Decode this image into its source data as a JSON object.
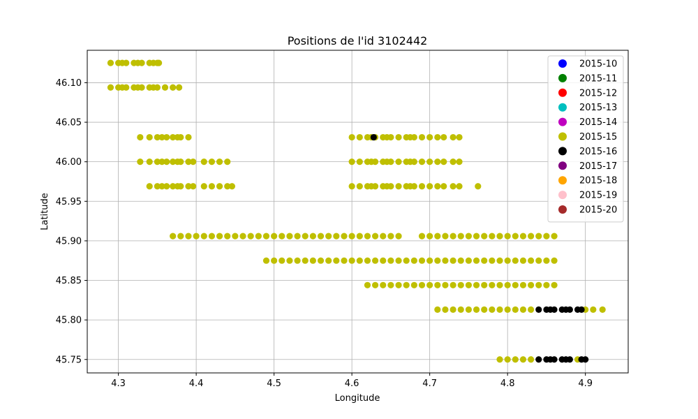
{
  "chart_data": {
    "type": "scatter",
    "title": "Positions de l'id 3102442",
    "xlabel": "Longitude",
    "ylabel": "Latitude",
    "xlim": [
      4.26,
      4.955
    ],
    "ylim": [
      45.733,
      46.141
    ],
    "xticks": [
      4.3,
      4.4,
      4.5,
      4.6,
      4.7,
      4.8,
      4.9
    ],
    "xtick_labels": [
      "4.3",
      "4.4",
      "4.5",
      "4.6",
      "4.7",
      "4.8",
      "4.9"
    ],
    "yticks": [
      45.75,
      45.8,
      45.85,
      45.9,
      45.95,
      46.0,
      46.05,
      46.1
    ],
    "ytick_labels": [
      "45.75",
      "45.80",
      "45.85",
      "45.90",
      "45.95",
      "46.00",
      "46.05",
      "46.10"
    ],
    "grid": true,
    "legend_position": "top-right",
    "legend": [
      {
        "label": "2015-10",
        "color": "#0000ff"
      },
      {
        "label": "2015-11",
        "color": "#008000"
      },
      {
        "label": "2015-12",
        "color": "#ff0000"
      },
      {
        "label": "2015-13",
        "color": "#00bfbf"
      },
      {
        "label": "2015-14",
        "color": "#bf00bf"
      },
      {
        "label": "2015-15",
        "color": "#bfbf00"
      },
      {
        "label": "2015-16",
        "color": "#000000"
      },
      {
        "label": "2015-17",
        "color": "#800080"
      },
      {
        "label": "2015-18",
        "color": "#ffa500"
      },
      {
        "label": "2015-19",
        "color": "#ffc0cb"
      },
      {
        "label": "2015-20",
        "color": "#a52a2a"
      }
    ],
    "series": [
      {
        "name": "2015-15",
        "color": "#bfbf00",
        "points": [
          [
            4.29,
            46.125
          ],
          [
            4.3,
            46.125
          ],
          [
            4.305,
            46.125
          ],
          [
            4.31,
            46.125
          ],
          [
            4.32,
            46.125
          ],
          [
            4.325,
            46.125
          ],
          [
            4.33,
            46.125
          ],
          [
            4.34,
            46.125
          ],
          [
            4.345,
            46.125
          ],
          [
            4.35,
            46.125
          ],
          [
            4.352,
            46.125
          ],
          [
            4.29,
            46.094
          ],
          [
            4.3,
            46.094
          ],
          [
            4.305,
            46.094
          ],
          [
            4.31,
            46.094
          ],
          [
            4.32,
            46.094
          ],
          [
            4.325,
            46.094
          ],
          [
            4.33,
            46.094
          ],
          [
            4.34,
            46.094
          ],
          [
            4.345,
            46.094
          ],
          [
            4.35,
            46.094
          ],
          [
            4.36,
            46.094
          ],
          [
            4.37,
            46.094
          ],
          [
            4.378,
            46.094
          ],
          [
            4.328,
            46.031
          ],
          [
            4.34,
            46.031
          ],
          [
            4.35,
            46.031
          ],
          [
            4.356,
            46.031
          ],
          [
            4.362,
            46.031
          ],
          [
            4.37,
            46.031
          ],
          [
            4.376,
            46.031
          ],
          [
            4.38,
            46.031
          ],
          [
            4.39,
            46.031
          ],
          [
            4.328,
            46.0
          ],
          [
            4.34,
            46.0
          ],
          [
            4.35,
            46.0
          ],
          [
            4.356,
            46.0
          ],
          [
            4.362,
            46.0
          ],
          [
            4.37,
            46.0
          ],
          [
            4.376,
            46.0
          ],
          [
            4.38,
            46.0
          ],
          [
            4.39,
            46.0
          ],
          [
            4.396,
            46.0
          ],
          [
            4.41,
            46.0
          ],
          [
            4.42,
            46.0
          ],
          [
            4.43,
            46.0
          ],
          [
            4.44,
            46.0
          ],
          [
            4.34,
            45.969
          ],
          [
            4.35,
            45.969
          ],
          [
            4.356,
            45.969
          ],
          [
            4.362,
            45.969
          ],
          [
            4.37,
            45.969
          ],
          [
            4.376,
            45.969
          ],
          [
            4.38,
            45.969
          ],
          [
            4.39,
            45.969
          ],
          [
            4.396,
            45.969
          ],
          [
            4.41,
            45.969
          ],
          [
            4.42,
            45.969
          ],
          [
            4.43,
            45.969
          ],
          [
            4.44,
            45.969
          ],
          [
            4.446,
            45.969
          ],
          [
            4.6,
            46.031
          ],
          [
            4.61,
            46.031
          ],
          [
            4.62,
            46.031
          ],
          [
            4.625,
            46.031
          ],
          [
            4.63,
            46.031
          ],
          [
            4.64,
            46.031
          ],
          [
            4.645,
            46.031
          ],
          [
            4.65,
            46.031
          ],
          [
            4.66,
            46.031
          ],
          [
            4.67,
            46.031
          ],
          [
            4.675,
            46.031
          ],
          [
            4.68,
            46.031
          ],
          [
            4.69,
            46.031
          ],
          [
            4.7,
            46.031
          ],
          [
            4.71,
            46.031
          ],
          [
            4.718,
            46.031
          ],
          [
            4.73,
            46.031
          ],
          [
            4.738,
            46.031
          ],
          [
            4.6,
            46.0
          ],
          [
            4.61,
            46.0
          ],
          [
            4.62,
            46.0
          ],
          [
            4.625,
            46.0
          ],
          [
            4.63,
            46.0
          ],
          [
            4.64,
            46.0
          ],
          [
            4.645,
            46.0
          ],
          [
            4.65,
            46.0
          ],
          [
            4.66,
            46.0
          ],
          [
            4.67,
            46.0
          ],
          [
            4.675,
            46.0
          ],
          [
            4.68,
            46.0
          ],
          [
            4.69,
            46.0
          ],
          [
            4.7,
            46.0
          ],
          [
            4.71,
            46.0
          ],
          [
            4.718,
            46.0
          ],
          [
            4.73,
            46.0
          ],
          [
            4.738,
            46.0
          ],
          [
            4.6,
            45.969
          ],
          [
            4.61,
            45.969
          ],
          [
            4.62,
            45.969
          ],
          [
            4.625,
            45.969
          ],
          [
            4.63,
            45.969
          ],
          [
            4.64,
            45.969
          ],
          [
            4.645,
            45.969
          ],
          [
            4.65,
            45.969
          ],
          [
            4.66,
            45.969
          ],
          [
            4.67,
            45.969
          ],
          [
            4.675,
            45.969
          ],
          [
            4.68,
            45.969
          ],
          [
            4.69,
            45.969
          ],
          [
            4.7,
            45.969
          ],
          [
            4.71,
            45.969
          ],
          [
            4.718,
            45.969
          ],
          [
            4.73,
            45.969
          ],
          [
            4.738,
            45.969
          ],
          [
            4.762,
            45.969
          ],
          [
            4.37,
            45.906
          ],
          [
            4.38,
            45.906
          ],
          [
            4.39,
            45.906
          ],
          [
            4.4,
            45.906
          ],
          [
            4.41,
            45.906
          ],
          [
            4.42,
            45.906
          ],
          [
            4.43,
            45.906
          ],
          [
            4.44,
            45.906
          ],
          [
            4.45,
            45.906
          ],
          [
            4.46,
            45.906
          ],
          [
            4.47,
            45.906
          ],
          [
            4.48,
            45.906
          ],
          [
            4.49,
            45.906
          ],
          [
            4.5,
            45.906
          ],
          [
            4.51,
            45.906
          ],
          [
            4.52,
            45.906
          ],
          [
            4.53,
            45.906
          ],
          [
            4.54,
            45.906
          ],
          [
            4.55,
            45.906
          ],
          [
            4.56,
            45.906
          ],
          [
            4.57,
            45.906
          ],
          [
            4.58,
            45.906
          ],
          [
            4.59,
            45.906
          ],
          [
            4.6,
            45.906
          ],
          [
            4.61,
            45.906
          ],
          [
            4.62,
            45.906
          ],
          [
            4.63,
            45.906
          ],
          [
            4.64,
            45.906
          ],
          [
            4.65,
            45.906
          ],
          [
            4.66,
            45.906
          ],
          [
            4.69,
            45.906
          ],
          [
            4.7,
            45.906
          ],
          [
            4.71,
            45.906
          ],
          [
            4.72,
            45.906
          ],
          [
            4.73,
            45.906
          ],
          [
            4.74,
            45.906
          ],
          [
            4.75,
            45.906
          ],
          [
            4.76,
            45.906
          ],
          [
            4.77,
            45.906
          ],
          [
            4.78,
            45.906
          ],
          [
            4.79,
            45.906
          ],
          [
            4.8,
            45.906
          ],
          [
            4.81,
            45.906
          ],
          [
            4.82,
            45.906
          ],
          [
            4.83,
            45.906
          ],
          [
            4.84,
            45.906
          ],
          [
            4.85,
            45.906
          ],
          [
            4.86,
            45.906
          ],
          [
            4.49,
            45.875
          ],
          [
            4.5,
            45.875
          ],
          [
            4.51,
            45.875
          ],
          [
            4.52,
            45.875
          ],
          [
            4.53,
            45.875
          ],
          [
            4.54,
            45.875
          ],
          [
            4.55,
            45.875
          ],
          [
            4.56,
            45.875
          ],
          [
            4.57,
            45.875
          ],
          [
            4.58,
            45.875
          ],
          [
            4.59,
            45.875
          ],
          [
            4.6,
            45.875
          ],
          [
            4.61,
            45.875
          ],
          [
            4.62,
            45.875
          ],
          [
            4.63,
            45.875
          ],
          [
            4.64,
            45.875
          ],
          [
            4.65,
            45.875
          ],
          [
            4.66,
            45.875
          ],
          [
            4.67,
            45.875
          ],
          [
            4.68,
            45.875
          ],
          [
            4.69,
            45.875
          ],
          [
            4.7,
            45.875
          ],
          [
            4.71,
            45.875
          ],
          [
            4.72,
            45.875
          ],
          [
            4.73,
            45.875
          ],
          [
            4.74,
            45.875
          ],
          [
            4.75,
            45.875
          ],
          [
            4.76,
            45.875
          ],
          [
            4.77,
            45.875
          ],
          [
            4.78,
            45.875
          ],
          [
            4.79,
            45.875
          ],
          [
            4.8,
            45.875
          ],
          [
            4.81,
            45.875
          ],
          [
            4.82,
            45.875
          ],
          [
            4.83,
            45.875
          ],
          [
            4.84,
            45.875
          ],
          [
            4.85,
            45.875
          ],
          [
            4.86,
            45.875
          ],
          [
            4.62,
            45.844
          ],
          [
            4.63,
            45.844
          ],
          [
            4.64,
            45.844
          ],
          [
            4.65,
            45.844
          ],
          [
            4.66,
            45.844
          ],
          [
            4.67,
            45.844
          ],
          [
            4.68,
            45.844
          ],
          [
            4.69,
            45.844
          ],
          [
            4.7,
            45.844
          ],
          [
            4.71,
            45.844
          ],
          [
            4.72,
            45.844
          ],
          [
            4.73,
            45.844
          ],
          [
            4.74,
            45.844
          ],
          [
            4.75,
            45.844
          ],
          [
            4.76,
            45.844
          ],
          [
            4.77,
            45.844
          ],
          [
            4.78,
            45.844
          ],
          [
            4.79,
            45.844
          ],
          [
            4.8,
            45.844
          ],
          [
            4.81,
            45.844
          ],
          [
            4.82,
            45.844
          ],
          [
            4.83,
            45.844
          ],
          [
            4.84,
            45.844
          ],
          [
            4.85,
            45.844
          ],
          [
            4.86,
            45.844
          ],
          [
            4.71,
            45.813
          ],
          [
            4.72,
            45.813
          ],
          [
            4.73,
            45.813
          ],
          [
            4.74,
            45.813
          ],
          [
            4.75,
            45.813
          ],
          [
            4.76,
            45.813
          ],
          [
            4.77,
            45.813
          ],
          [
            4.78,
            45.813
          ],
          [
            4.79,
            45.813
          ],
          [
            4.8,
            45.813
          ],
          [
            4.81,
            45.813
          ],
          [
            4.82,
            45.813
          ],
          [
            4.83,
            45.813
          ],
          [
            4.9,
            45.813
          ],
          [
            4.91,
            45.813
          ],
          [
            4.922,
            45.813
          ],
          [
            4.79,
            45.75
          ],
          [
            4.8,
            45.75
          ],
          [
            4.81,
            45.75
          ],
          [
            4.82,
            45.75
          ],
          [
            4.83,
            45.75
          ],
          [
            4.89,
            45.75
          ]
        ]
      },
      {
        "name": "2015-16",
        "color": "#000000",
        "points": [
          [
            4.628,
            46.031
          ],
          [
            4.84,
            45.813
          ],
          [
            4.85,
            45.813
          ],
          [
            4.855,
            45.813
          ],
          [
            4.86,
            45.813
          ],
          [
            4.87,
            45.813
          ],
          [
            4.875,
            45.813
          ],
          [
            4.88,
            45.813
          ],
          [
            4.89,
            45.813
          ],
          [
            4.895,
            45.813
          ],
          [
            4.84,
            45.75
          ],
          [
            4.85,
            45.75
          ],
          [
            4.855,
            45.75
          ],
          [
            4.86,
            45.75
          ],
          [
            4.87,
            45.75
          ],
          [
            4.875,
            45.75
          ],
          [
            4.88,
            45.75
          ],
          [
            4.895,
            45.75
          ],
          [
            4.9,
            45.75
          ]
        ]
      }
    ]
  }
}
